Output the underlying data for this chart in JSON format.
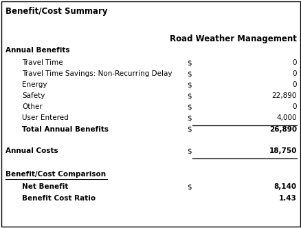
{
  "title": "Benefit/Cost Summary",
  "col_header": "Road Weather Management",
  "sections": [
    {
      "label": "Annual Benefits",
      "bold": true,
      "underline": false,
      "indent": false,
      "dollar": false,
      "value": null,
      "line_above_value": false,
      "line_below_value": false
    },
    {
      "label": "Travel Time",
      "bold": false,
      "underline": false,
      "indent": true,
      "dollar": true,
      "value": "0",
      "line_above_value": false,
      "line_below_value": false
    },
    {
      "label": "Travel Time Savings: Non-Recurring Delay",
      "bold": false,
      "underline": false,
      "indent": true,
      "dollar": true,
      "value": "0",
      "line_above_value": false,
      "line_below_value": false
    },
    {
      "label": "Energy",
      "bold": false,
      "underline": false,
      "indent": true,
      "dollar": true,
      "value": "0",
      "line_above_value": false,
      "line_below_value": false
    },
    {
      "label": "Safety",
      "bold": false,
      "underline": false,
      "indent": true,
      "dollar": true,
      "value": "22,890",
      "line_above_value": false,
      "line_below_value": false
    },
    {
      "label": "Other",
      "bold": false,
      "underline": false,
      "indent": true,
      "dollar": true,
      "value": "0",
      "line_above_value": false,
      "line_below_value": false
    },
    {
      "label": "User Entered",
      "bold": false,
      "underline": false,
      "indent": true,
      "dollar": true,
      "value": "4,000",
      "line_above_value": false,
      "line_below_value": false
    },
    {
      "label": "Total Annual Benefits",
      "bold": true,
      "underline": false,
      "indent": true,
      "dollar": true,
      "value": "26,890",
      "line_above_value": true,
      "line_below_value": false
    },
    {
      "label": "Annual Costs",
      "bold": true,
      "underline": false,
      "indent": false,
      "dollar": true,
      "value": "18,750",
      "line_above_value": false,
      "line_below_value": true
    },
    {
      "label": "Benefit/Cost Comparison",
      "bold": true,
      "underline": true,
      "indent": false,
      "dollar": false,
      "value": null,
      "line_above_value": false,
      "line_below_value": false
    },
    {
      "label": "Net Benefit",
      "bold": true,
      "underline": false,
      "indent": true,
      "dollar": true,
      "value": "8,140",
      "line_above_value": false,
      "line_below_value": false
    },
    {
      "label": "Benefit Cost Ratio",
      "bold": true,
      "underline": false,
      "indent": true,
      "dollar": false,
      "value": "1.43",
      "line_above_value": false,
      "line_below_value": false
    }
  ],
  "bg_color": "#ffffff",
  "border_color": "#000000",
  "text_color": "#000000",
  "font_size": 7.5,
  "title_font_size": 8.5,
  "header_font_size": 8.5
}
